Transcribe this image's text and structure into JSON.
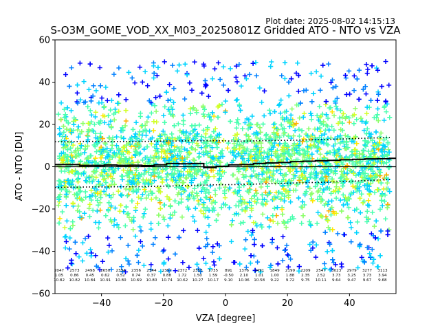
{
  "plot_date": "Plot date: 2025-08-02 14:15:13",
  "chart_data": {
    "type": "scatter",
    "title": "S-O3M_GOME_VOD_XX_M03_20250801Z Gridded ATO - NTO vs VZA",
    "xlabel": "VZA [degree]",
    "ylabel": "ATO - NTO [DU]",
    "xlim": [
      -55,
      55
    ],
    "ylim": [
      -60,
      60
    ],
    "xticks": [
      -40,
      -20,
      0,
      20,
      40
    ],
    "yticks": [
      -60,
      -40,
      -20,
      0,
      20,
      40,
      60
    ],
    "marker": "+",
    "colormap": [
      "#0000ff",
      "#0080ff",
      "#00d4ff",
      "#48ffae",
      "#8cff6a",
      "#d1ff26",
      "#ffe600",
      "#ffb000"
    ],
    "point_cloud": {
      "x_range": [
        -54,
        53
      ],
      "core_y_range": [
        -28,
        32
      ],
      "outlier_y_range": [
        -56,
        50
      ]
    },
    "bin_width_deg": 4,
    "bins": [
      {
        "x": -52,
        "count": 2047,
        "mean": 1.05,
        "std": 10.82
      },
      {
        "x": -48,
        "count": 2573,
        "mean": 0.86,
        "std": 10.82
      },
      {
        "x": -44,
        "count": 2498,
        "mean": 0.45,
        "std": 10.84
      },
      {
        "x": -40,
        "count": 2650,
        "mean": 0.62,
        "std": 10.91
      },
      {
        "x": -36,
        "count": 2354,
        "mean": 0.52,
        "std": 10.8
      },
      {
        "x": -32,
        "count": 2356,
        "mean": 0.74,
        "std": 10.69
      },
      {
        "x": -28,
        "count": 2344,
        "mean": 0.37,
        "std": 10.8
      },
      {
        "x": -24,
        "count": 2357,
        "mean": 0.88,
        "std": 10.74
      },
      {
        "x": -20,
        "count": 2372,
        "mean": 1.72,
        "std": 10.62
      },
      {
        "x": -16,
        "count": 2353,
        "mean": 1.5,
        "std": 10.27
      },
      {
        "x": -12,
        "count": 1735,
        "mean": 1.59,
        "std": 10.17
      },
      {
        "x": -8,
        "count": 891,
        "mean": -0.5,
        "std": 9.1
      },
      {
        "x": -4,
        "count": 1376,
        "mean": 2.1,
        "std": 10.06
      },
      {
        "x": 0,
        "count": 2491,
        "mean": 1.01,
        "std": 10.58
      },
      {
        "x": 4,
        "count": 1849,
        "mean": 1.0,
        "std": 9.22
      },
      {
        "x": 8,
        "count": 2199,
        "mean": 1.88,
        "std": 9.72
      },
      {
        "x": 12,
        "count": 2209,
        "mean": 2.35,
        "std": 9.75
      },
      {
        "x": 16,
        "count": 2547,
        "mean": 2.52,
        "std": 10.11
      },
      {
        "x": 20,
        "count": 3023,
        "mean": 3.73,
        "std": 9.64
      },
      {
        "x": 24,
        "count": 2979,
        "mean": 3.25,
        "std": 9.47
      },
      {
        "x": 28,
        "count": 3277,
        "mean": 3.73,
        "std": 9.67
      },
      {
        "x": 32,
        "count": 3113,
        "mean": 3.94,
        "std": 9.68
      }
    ],
    "mean_line": {
      "x": [
        -55,
        -51,
        -47,
        -43,
        -39,
        -35,
        -31,
        -27,
        -23,
        -19,
        -15,
        -11,
        -7,
        -3,
        1,
        5,
        9,
        13,
        17,
        21,
        25,
        29,
        33,
        37,
        41,
        45,
        49,
        53
      ],
      "y": [
        1.0,
        1.0,
        0.6,
        0.6,
        0.8,
        0.6,
        0.7,
        0.5,
        0.9,
        1.5,
        1.4,
        1.5,
        -0.4,
        0.2,
        0.9,
        1.0,
        1.5,
        1.8,
        2.0,
        2.4,
        2.6,
        2.8,
        3.0,
        3.3,
        3.5,
        3.7,
        3.8,
        4.0
      ]
    },
    "upper_std": {
      "x": [
        -55,
        -45,
        -35,
        -25,
        -15,
        -5,
        5,
        15,
        25,
        35,
        45,
        53
      ],
      "y": [
        11.8,
        12.0,
        11.9,
        12.0,
        12.2,
        12.3,
        12.1,
        12.4,
        12.6,
        13.0,
        13.5,
        13.8
      ]
    },
    "lower_std": {
      "x": [
        -55,
        -45,
        -35,
        -25,
        -15,
        -5,
        5,
        15,
        25,
        35,
        45,
        53
      ],
      "y": [
        -9.8,
        -9.6,
        -9.5,
        -9.4,
        -9.0,
        -8.6,
        -8.4,
        -8.0,
        -7.6,
        -7.2,
        -6.6,
        -6.0
      ]
    }
  }
}
